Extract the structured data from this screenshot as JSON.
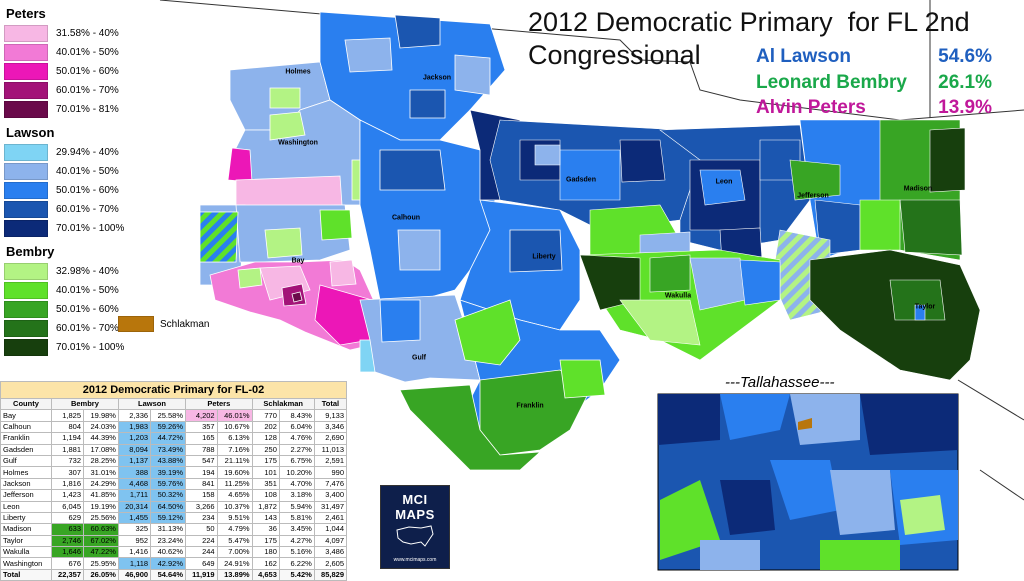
{
  "title_line1": "2012 Democratic Primary  for FL 2nd",
  "title_line2": "Congressional",
  "results": [
    {
      "name": "Al Lawson",
      "pct": "54.6%",
      "color": "#1f5fbf"
    },
    {
      "name": "Leonard Bembry",
      "pct": "26.1%",
      "color": "#1aa84a"
    },
    {
      "name": "Alvin Peters",
      "pct": "13.9%",
      "color": "#c0189a"
    }
  ],
  "legend": {
    "peters": {
      "title": "Peters",
      "items": [
        {
          "label": "31.58% - 40%",
          "color": "#f7b7e4"
        },
        {
          "label": "40.01% - 50%",
          "color": "#f27ad6"
        },
        {
          "label": "50.01% - 60%",
          "color": "#ec17b7"
        },
        {
          "label": "60.01% - 70%",
          "color": "#a31378"
        },
        {
          "label": "70.01% - 81%",
          "color": "#6a0a4a"
        }
      ]
    },
    "lawson": {
      "title": "Lawson",
      "items": [
        {
          "label": "29.94% - 40%",
          "color": "#7fd4f4"
        },
        {
          "label": "40.01% - 50%",
          "color": "#8db3ec"
        },
        {
          "label": "50.01% - 60%",
          "color": "#2a7fef"
        },
        {
          "label": "60.01% - 70%",
          "color": "#1b56b0"
        },
        {
          "label": "70.01% - 100%",
          "color": "#0c2a78"
        }
      ]
    },
    "bembry": {
      "title": "Bembry",
      "items": [
        {
          "label": "32.98% - 40%",
          "color": "#b3f384"
        },
        {
          "label": "40.01% - 50%",
          "color": "#5fe12a"
        },
        {
          "label": "50.01% - 60%",
          "color": "#38a524"
        },
        {
          "label": "60.01% - 70%",
          "color": "#24731a"
        },
        {
          "label": "70.01% - 100%",
          "color": "#173f0d"
        }
      ]
    },
    "schlakman": {
      "label": "Schlakman",
      "color": "#b8760c"
    }
  },
  "county_labels": {
    "holmes": "Holmes",
    "jackson": "Jackson",
    "washington": "Washington",
    "gadsden": "Gadsden",
    "leon": "Leon",
    "jefferson": "Jefferson",
    "madison": "Madison",
    "calhoun": "Calhoun",
    "liberty": "Liberty",
    "bay": "Bay",
    "wakulla": "Wakulla",
    "taylor": "Taylor",
    "gulf": "Gulf",
    "franklin": "Franklin"
  },
  "inset_title": "---Tallahassee---",
  "table": {
    "caption": "2012 Democratic Primary for FL-02",
    "headers": [
      "County",
      "Bembry",
      "Lawson",
      "Peters",
      "Schlakman",
      "Total"
    ],
    "rows": [
      {
        "county": "Bay",
        "bembry": "1,825",
        "bembry_pct": "19.98%",
        "lawson": "2,336",
        "lawson_pct": "25.58%",
        "peters": "4,202",
        "peters_pct": "46.01%",
        "schlak": "770",
        "schlak_pct": "8.43%",
        "total": "9,133",
        "hl": "peters"
      },
      {
        "county": "Calhoun",
        "bembry": "804",
        "bembry_pct": "24.03%",
        "lawson": "1,983",
        "lawson_pct": "59.26%",
        "peters": "357",
        "peters_pct": "10.67%",
        "schlak": "202",
        "schlak_pct": "6.04%",
        "total": "3,346",
        "hl": "lawson"
      },
      {
        "county": "Franklin",
        "bembry": "1,194",
        "bembry_pct": "44.39%",
        "lawson": "1,203",
        "lawson_pct": "44.72%",
        "peters": "165",
        "peters_pct": "6.13%",
        "schlak": "128",
        "schlak_pct": "4.76%",
        "total": "2,690",
        "hl": "lawson"
      },
      {
        "county": "Gadsden",
        "bembry": "1,881",
        "bembry_pct": "17.08%",
        "lawson": "8,094",
        "lawson_pct": "73.49%",
        "peters": "788",
        "peters_pct": "7.16%",
        "schlak": "250",
        "schlak_pct": "2.27%",
        "total": "11,013",
        "hl": "lawson"
      },
      {
        "county": "Gulf",
        "bembry": "732",
        "bembry_pct": "28.25%",
        "lawson": "1,137",
        "lawson_pct": "43.88%",
        "peters": "547",
        "peters_pct": "21.11%",
        "schlak": "175",
        "schlak_pct": "6.75%",
        "total": "2,591",
        "hl": "lawson"
      },
      {
        "county": "Holmes",
        "bembry": "307",
        "bembry_pct": "31.01%",
        "lawson": "388",
        "lawson_pct": "39.19%",
        "peters": "194",
        "peters_pct": "19.60%",
        "schlak": "101",
        "schlak_pct": "10.20%",
        "total": "990",
        "hl": "lawson"
      },
      {
        "county": "Jackson",
        "bembry": "1,816",
        "bembry_pct": "24.29%",
        "lawson": "4,468",
        "lawson_pct": "59.76%",
        "peters": "841",
        "peters_pct": "11.25%",
        "schlak": "351",
        "schlak_pct": "4.70%",
        "total": "7,476",
        "hl": "lawson"
      },
      {
        "county": "Jefferson",
        "bembry": "1,423",
        "bembry_pct": "41.85%",
        "lawson": "1,711",
        "lawson_pct": "50.32%",
        "peters": "158",
        "peters_pct": "4.65%",
        "schlak": "108",
        "schlak_pct": "3.18%",
        "total": "3,400",
        "hl": "lawson"
      },
      {
        "county": "Leon",
        "bembry": "6,045",
        "bembry_pct": "19.19%",
        "lawson": "20,314",
        "lawson_pct": "64.50%",
        "peters": "3,266",
        "peters_pct": "10.37%",
        "schlak": "1,872",
        "schlak_pct": "5.94%",
        "total": "31,497",
        "hl": "lawson"
      },
      {
        "county": "Liberty",
        "bembry": "629",
        "bembry_pct": "25.56%",
        "lawson": "1,455",
        "lawson_pct": "59.12%",
        "peters": "234",
        "peters_pct": "9.51%",
        "schlak": "143",
        "schlak_pct": "5.81%",
        "total": "2,461",
        "hl": "lawson"
      },
      {
        "county": "Madison",
        "bembry": "633",
        "bembry_pct": "60.63%",
        "lawson": "325",
        "lawson_pct": "31.13%",
        "peters": "50",
        "peters_pct": "4.79%",
        "schlak": "36",
        "schlak_pct": "3.45%",
        "total": "1,044",
        "hl": "bembry"
      },
      {
        "county": "Taylor",
        "bembry": "2,746",
        "bembry_pct": "67.02%",
        "lawson": "952",
        "lawson_pct": "23.24%",
        "peters": "224",
        "peters_pct": "5.47%",
        "schlak": "175",
        "schlak_pct": "4.27%",
        "total": "4,097",
        "hl": "bembry"
      },
      {
        "county": "Wakulla",
        "bembry": "1,646",
        "bembry_pct": "47.22%",
        "lawson": "1,416",
        "lawson_pct": "40.62%",
        "peters": "244",
        "peters_pct": "7.00%",
        "schlak": "180",
        "schlak_pct": "5.16%",
        "total": "3,486",
        "hl": "bembry"
      },
      {
        "county": "Washington",
        "bembry": "676",
        "bembry_pct": "25.95%",
        "lawson": "1,118",
        "lawson_pct": "42.92%",
        "peters": "649",
        "peters_pct": "24.91%",
        "schlak": "162",
        "schlak_pct": "6.22%",
        "total": "2,605",
        "hl": "lawson"
      }
    ],
    "total": {
      "county": "Total",
      "bembry": "22,357",
      "bembry_pct": "26.05%",
      "lawson": "46,900",
      "lawson_pct": "54.64%",
      "peters": "11,919",
      "peters_pct": "13.89%",
      "schlak": "4,653",
      "schlak_pct": "5.42%",
      "total": "85,829"
    }
  },
  "logo": {
    "text": "MCI MAPS",
    "url": "www.mcimaps.com"
  }
}
